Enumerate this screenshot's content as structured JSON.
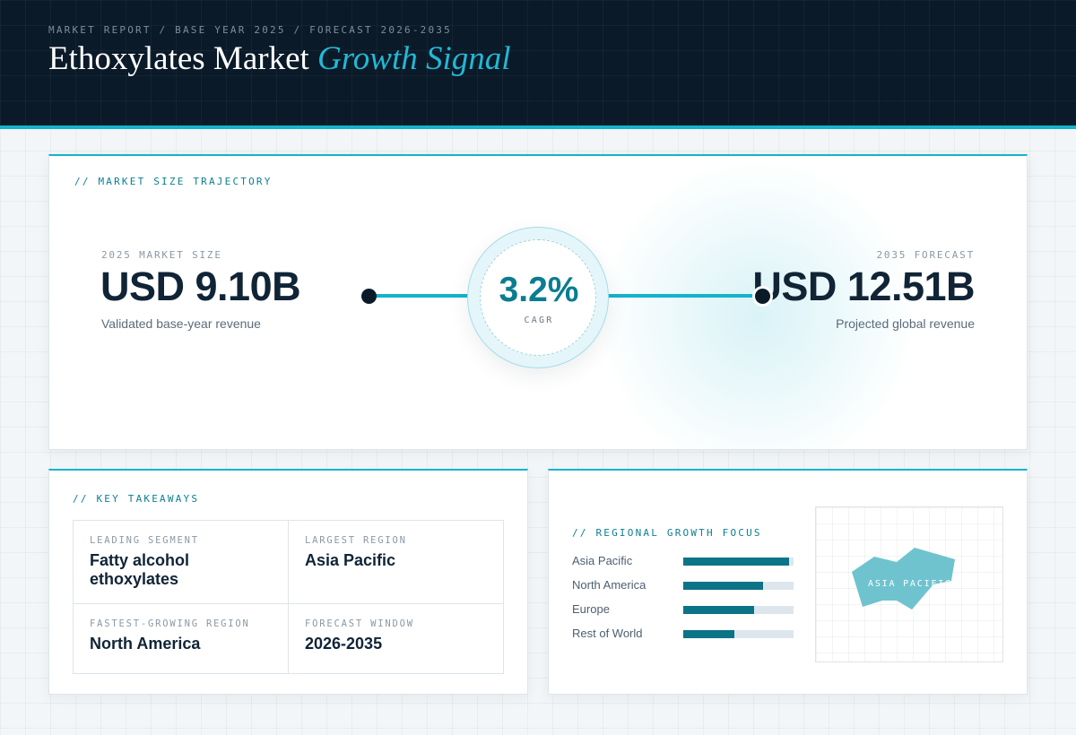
{
  "header": {
    "kicker": "MARKET REPORT / BASE YEAR 2025 / FORECAST 2026-2035",
    "title_main": "Ethoxylates Market",
    "title_accent": "Growth Signal"
  },
  "trajectory": {
    "section_label": "// MARKET SIZE TRAJECTORY",
    "start": {
      "label": "2025 MARKET SIZE",
      "value": "USD 9.10B",
      "caption": "Validated base-year revenue"
    },
    "end": {
      "label": "2035 FORECAST",
      "value": "USD 12.51B",
      "caption": "Projected global revenue"
    },
    "cagr": {
      "value": "3.2%",
      "label": "CAGR"
    }
  },
  "takeaways": {
    "section_label": "// KEY TAKEAWAYS",
    "items": [
      {
        "label": "LEADING SEGMENT",
        "value": "Fatty alcohol ethoxylates"
      },
      {
        "label": "LARGEST REGION",
        "value": "Asia Pacific"
      },
      {
        "label": "FASTEST-GROWING REGION",
        "value": "North America"
      },
      {
        "label": "FORECAST WINDOW",
        "value": "2026-2035"
      }
    ]
  },
  "regional": {
    "section_label": "// REGIONAL GROWTH FOCUS",
    "bars": [
      {
        "name": "Asia Pacific",
        "level": 0.96
      },
      {
        "name": "North America",
        "level": 0.72
      },
      {
        "name": "Europe",
        "level": 0.64
      },
      {
        "name": "Rest of World",
        "level": 0.46
      }
    ],
    "map_label": "ASIA PACIFIC"
  },
  "colors": {
    "accent": "#14b3cc",
    "accent_dark": "#0b7486",
    "ink": "#102436",
    "header_bg": "#0b1a28",
    "map_shape": "#6fc3cf"
  }
}
